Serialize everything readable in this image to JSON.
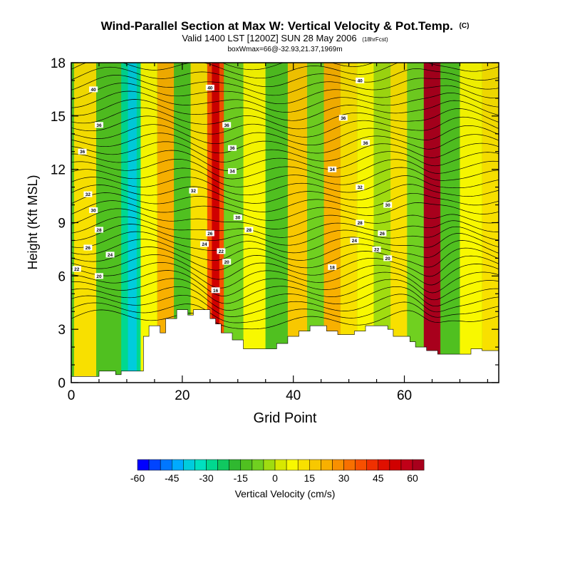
{
  "header": {
    "title": "Wind-Parallel Section at Max W: Vertical Velocity & Pot.Temp.",
    "title_mark": "(C)",
    "subtitle": "Valid 1400 LST [1200Z] SUN 28 May 2006",
    "subtitle_note": "(18hrFcst)",
    "box_note": "boxWmax=66@-32.93,21.37,1969m"
  },
  "chart_data": {
    "type": "heatmap",
    "xlabel": "Grid Point",
    "ylabel": "Height (Kft MSL)",
    "xlim": [
      0,
      77
    ],
    "ylim": [
      0,
      18
    ],
    "x_ticks": [
      "0",
      "20",
      "40",
      "60"
    ],
    "y_ticks": [
      "0",
      "3",
      "6",
      "9",
      "12",
      "15",
      "18"
    ],
    "colorbar": {
      "label": "Vertical Velocity (cm/s)",
      "range": [
        -60,
        69
      ],
      "step": 5,
      "tick_labels": [
        "-60",
        "-45",
        "-30",
        "-15",
        "0",
        "15",
        "30",
        "45",
        "60"
      ],
      "colors": [
        "#0000ff",
        "#0044ff",
        "#0077ff",
        "#00aaff",
        "#00ccdd",
        "#00e0c0",
        "#00d890",
        "#10c860",
        "#30b830",
        "#50c020",
        "#70d020",
        "#a0dc10",
        "#d8e800",
        "#f8f800",
        "#f8e000",
        "#f8c800",
        "#f8b000",
        "#f89000",
        "#f87000",
        "#f85000",
        "#f03000",
        "#e01000",
        "#d00000",
        "#c00018",
        "#a8001c"
      ]
    },
    "wind_columns": [
      {
        "x": 2,
        "w": 10
      },
      {
        "x": 7,
        "w": -12
      },
      {
        "x": 11,
        "w": -30
      },
      {
        "x": 14,
        "w": 5
      },
      {
        "x": 17,
        "w": 20
      },
      {
        "x": 20,
        "w": -15
      },
      {
        "x": 23,
        "w": 12
      },
      {
        "x": 26,
        "w": 35
      },
      {
        "x": 29,
        "w": -8
      },
      {
        "x": 33,
        "w": 5
      },
      {
        "x": 37,
        "w": -15
      },
      {
        "x": 41,
        "w": 15
      },
      {
        "x": 44,
        "w": -10
      },
      {
        "x": 47,
        "w": 20
      },
      {
        "x": 50,
        "w": 10
      },
      {
        "x": 53,
        "w": 8
      },
      {
        "x": 56,
        "w": -5
      },
      {
        "x": 59,
        "w": 10
      },
      {
        "x": 62,
        "w": -10
      },
      {
        "x": 65,
        "w": 60
      },
      {
        "x": 68,
        "w": -15
      },
      {
        "x": 72,
        "w": 5
      },
      {
        "x": 76,
        "w": 10
      }
    ],
    "theta_labels": [
      {
        "x": 4,
        "y": 16.5,
        "text": "40"
      },
      {
        "x": 25,
        "y": 16.6,
        "text": "40"
      },
      {
        "x": 52,
        "y": 17.0,
        "text": "40"
      },
      {
        "x": 5,
        "y": 14.5,
        "text": "36"
      },
      {
        "x": 28,
        "y": 14.5,
        "text": "36"
      },
      {
        "x": 49,
        "y": 14.9,
        "text": "36"
      },
      {
        "x": 2,
        "y": 13.0,
        "text": "36"
      },
      {
        "x": 29,
        "y": 13.2,
        "text": "36"
      },
      {
        "x": 53,
        "y": 13.5,
        "text": "36"
      },
      {
        "x": 29,
        "y": 11.9,
        "text": "34"
      },
      {
        "x": 47,
        "y": 12.0,
        "text": "34"
      },
      {
        "x": 3,
        "y": 10.6,
        "text": "32"
      },
      {
        "x": 22,
        "y": 10.8,
        "text": "32"
      },
      {
        "x": 52,
        "y": 11.0,
        "text": "32"
      },
      {
        "x": 4,
        "y": 9.7,
        "text": "30"
      },
      {
        "x": 30,
        "y": 9.3,
        "text": "30"
      },
      {
        "x": 57,
        "y": 10.0,
        "text": "30"
      },
      {
        "x": 5,
        "y": 8.6,
        "text": "28"
      },
      {
        "x": 32,
        "y": 8.6,
        "text": "28"
      },
      {
        "x": 52,
        "y": 9.0,
        "text": "28"
      },
      {
        "x": 25,
        "y": 8.4,
        "text": "26"
      },
      {
        "x": 56,
        "y": 8.4,
        "text": "26"
      },
      {
        "x": 3,
        "y": 7.6,
        "text": "26"
      },
      {
        "x": 24,
        "y": 7.8,
        "text": "24"
      },
      {
        "x": 51,
        "y": 8.0,
        "text": "24"
      },
      {
        "x": 7,
        "y": 7.2,
        "text": "24"
      },
      {
        "x": 27,
        "y": 7.4,
        "text": "22"
      },
      {
        "x": 55,
        "y": 7.5,
        "text": "22"
      },
      {
        "x": 1,
        "y": 6.4,
        "text": "22"
      },
      {
        "x": 28,
        "y": 6.8,
        "text": "20"
      },
      {
        "x": 57,
        "y": 7.0,
        "text": "20"
      },
      {
        "x": 5,
        "y": 6.0,
        "text": "20"
      },
      {
        "x": 47,
        "y": 6.5,
        "text": "18"
      },
      {
        "x": 26,
        "y": 5.2,
        "text": "16"
      }
    ],
    "terrain_profile": [
      [
        0,
        0.35
      ],
      [
        5,
        0.35
      ],
      [
        5,
        0.65
      ],
      [
        8,
        0.65
      ],
      [
        8,
        0.45
      ],
      [
        9,
        0.45
      ],
      [
        9,
        0.65
      ],
      [
        13,
        0.65
      ],
      [
        13,
        2.6
      ],
      [
        14,
        2.6
      ],
      [
        14,
        3.2
      ],
      [
        16,
        3.2
      ],
      [
        16,
        2.8
      ],
      [
        17,
        2.8
      ],
      [
        17,
        3.6
      ],
      [
        19,
        3.6
      ],
      [
        19,
        4.1
      ],
      [
        21,
        4.1
      ],
      [
        21,
        3.8
      ],
      [
        22,
        3.8
      ],
      [
        22,
        4.1
      ],
      [
        25,
        4.1
      ],
      [
        25,
        3.6
      ],
      [
        26,
        3.6
      ],
      [
        26,
        3.3
      ],
      [
        27,
        3.3
      ],
      [
        27,
        2.8
      ],
      [
        29,
        2.8
      ],
      [
        29,
        2.4
      ],
      [
        31,
        2.4
      ],
      [
        31,
        1.9
      ],
      [
        37,
        1.9
      ],
      [
        37,
        2.2
      ],
      [
        39,
        2.2
      ],
      [
        39,
        2.6
      ],
      [
        41,
        2.6
      ],
      [
        41,
        2.9
      ],
      [
        43,
        2.9
      ],
      [
        43,
        3.2
      ],
      [
        46,
        3.2
      ],
      [
        46,
        2.9
      ],
      [
        48,
        2.9
      ],
      [
        48,
        2.7
      ],
      [
        51,
        2.7
      ],
      [
        51,
        2.9
      ],
      [
        53,
        2.9
      ],
      [
        53,
        3.2
      ],
      [
        57,
        3.2
      ],
      [
        57,
        3.0
      ],
      [
        58,
        3.0
      ],
      [
        58,
        2.6
      ],
      [
        61,
        2.6
      ],
      [
        61,
        2.3
      ],
      [
        62,
        2.3
      ],
      [
        62,
        2.0
      ],
      [
        64,
        2.0
      ],
      [
        64,
        1.8
      ],
      [
        66,
        1.8
      ],
      [
        66,
        1.6
      ],
      [
        72,
        1.6
      ],
      [
        72,
        1.9
      ],
      [
        74,
        1.9
      ],
      [
        74,
        1.8
      ],
      [
        77,
        1.8
      ]
    ]
  }
}
